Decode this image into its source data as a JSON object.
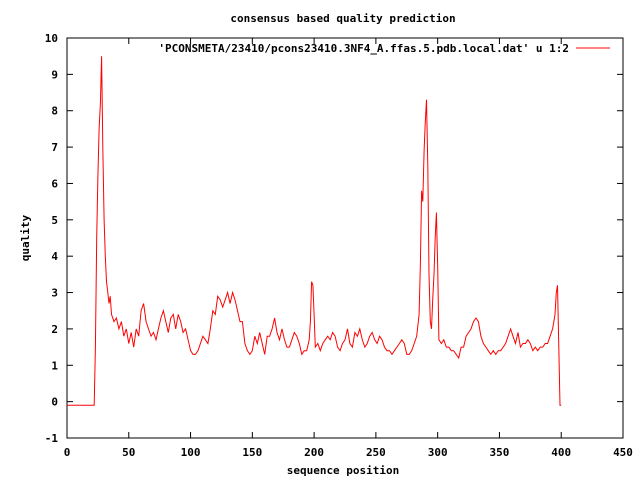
{
  "chart_data": {
    "type": "line",
    "title": "consensus based quality prediction",
    "xlabel": "sequence position",
    "ylabel": "quality",
    "xlim": [
      0,
      450
    ],
    "ylim": [
      -1,
      10
    ],
    "xticks": [
      0,
      50,
      100,
      150,
      200,
      250,
      300,
      350,
      400,
      450
    ],
    "yticks": [
      -1,
      0,
      1,
      2,
      3,
      4,
      5,
      6,
      7,
      8,
      9,
      10
    ],
    "grid": false,
    "legend_position": "top-right",
    "series": [
      {
        "name": "'PCONSMETA/23410/pcons23410.3NF4_A.ffas.5.pdb.local.dat' u 1:2",
        "color": "#ff0000",
        "x": [
          0,
          22,
          23,
          24,
          25,
          26,
          27,
          28,
          29,
          30,
          31,
          32,
          33,
          34,
          35,
          36,
          38,
          40,
          42,
          44,
          46,
          48,
          50,
          52,
          54,
          56,
          58,
          60,
          62,
          64,
          66,
          68,
          70,
          72,
          74,
          76,
          78,
          80,
          82,
          84,
          86,
          88,
          90,
          92,
          94,
          96,
          98,
          100,
          102,
          104,
          106,
          108,
          110,
          112,
          114,
          116,
          118,
          120,
          122,
          124,
          126,
          128,
          130,
          132,
          134,
          136,
          138,
          140,
          142,
          144,
          146,
          148,
          150,
          152,
          154,
          156,
          158,
          160,
          162,
          164,
          166,
          168,
          170,
          172,
          174,
          176,
          178,
          180,
          182,
          184,
          186,
          188,
          190,
          192,
          194,
          196,
          197,
          198,
          199,
          200,
          201,
          203,
          205,
          207,
          209,
          211,
          213,
          215,
          217,
          219,
          221,
          223,
          225,
          227,
          229,
          231,
          233,
          235,
          237,
          239,
          241,
          243,
          245,
          247,
          249,
          251,
          253,
          255,
          257,
          259,
          261,
          263,
          265,
          267,
          269,
          271,
          273,
          275,
          277,
          279,
          281,
          283,
          285,
          286,
          287,
          288,
          289,
          290,
          291,
          292,
          293,
          294,
          295,
          296,
          297,
          298,
          299,
          300,
          301,
          303,
          305,
          307,
          309,
          311,
          313,
          315,
          317,
          319,
          321,
          323,
          325,
          327,
          329,
          331,
          333,
          335,
          337,
          339,
          341,
          343,
          345,
          347,
          349,
          351,
          353,
          355,
          357,
          359,
          361,
          363,
          365,
          367,
          369,
          371,
          373,
          375,
          377,
          379,
          381,
          383,
          385,
          387,
          389,
          391,
          393,
          395,
          396,
          397,
          398,
          399,
          400
        ],
        "y": [
          -0.1,
          -0.1,
          1.5,
          4.5,
          6.2,
          7.5,
          8.2,
          9.5,
          7.0,
          5.0,
          4.0,
          3.3,
          3.0,
          2.7,
          2.9,
          2.4,
          2.2,
          2.3,
          2.0,
          2.2,
          1.8,
          2.0,
          1.6,
          1.9,
          1.5,
          2.0,
          1.8,
          2.5,
          2.7,
          2.2,
          2.0,
          1.8,
          1.9,
          1.7,
          2.0,
          2.3,
          2.5,
          2.2,
          1.9,
          2.3,
          2.4,
          2.0,
          2.4,
          2.2,
          1.9,
          2.0,
          1.7,
          1.4,
          1.3,
          1.3,
          1.4,
          1.6,
          1.8,
          1.7,
          1.6,
          2.0,
          2.5,
          2.4,
          2.9,
          2.8,
          2.6,
          2.8,
          3.0,
          2.7,
          3.0,
          2.8,
          2.5,
          2.2,
          2.2,
          1.6,
          1.4,
          1.3,
          1.4,
          1.8,
          1.6,
          1.9,
          1.6,
          1.3,
          1.8,
          1.8,
          2.0,
          2.3,
          1.9,
          1.7,
          2.0,
          1.7,
          1.5,
          1.5,
          1.7,
          1.9,
          1.8,
          1.6,
          1.3,
          1.4,
          1.4,
          1.7,
          2.2,
          3.3,
          3.2,
          2.4,
          1.5,
          1.6,
          1.4,
          1.6,
          1.7,
          1.8,
          1.7,
          1.9,
          1.8,
          1.5,
          1.4,
          1.6,
          1.7,
          2.0,
          1.6,
          1.5,
          1.9,
          1.8,
          2.0,
          1.7,
          1.5,
          1.6,
          1.8,
          1.9,
          1.7,
          1.6,
          1.8,
          1.7,
          1.5,
          1.4,
          1.4,
          1.3,
          1.4,
          1.5,
          1.6,
          1.7,
          1.6,
          1.3,
          1.3,
          1.4,
          1.6,
          1.8,
          2.4,
          3.8,
          5.8,
          5.5,
          6.9,
          7.7,
          8.3,
          6.5,
          3.5,
          2.2,
          2.0,
          2.8,
          3.5,
          4.5,
          5.2,
          3.7,
          1.7,
          1.6,
          1.7,
          1.5,
          1.5,
          1.4,
          1.4,
          1.3,
          1.2,
          1.5,
          1.5,
          1.8,
          1.9,
          2.0,
          2.2,
          2.3,
          2.2,
          1.8,
          1.6,
          1.5,
          1.4,
          1.3,
          1.4,
          1.3,
          1.4,
          1.4,
          1.5,
          1.6,
          1.8,
          2.0,
          1.8,
          1.6,
          1.9,
          1.5,
          1.6,
          1.6,
          1.7,
          1.6,
          1.4,
          1.5,
          1.4,
          1.5,
          1.5,
          1.6,
          1.6,
          1.8,
          2.0,
          2.4,
          3.0,
          3.2,
          1.5,
          -0.1,
          -0.1
        ]
      }
    ]
  }
}
